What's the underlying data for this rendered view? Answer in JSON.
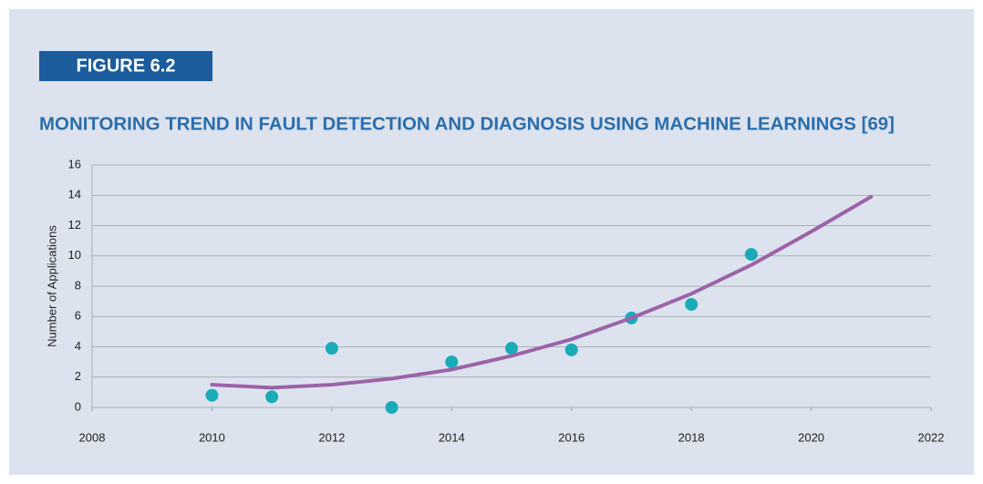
{
  "figure_label": "FIGURE 6.2",
  "chart_data": {
    "type": "scatter",
    "title": "MONITORING TREND IN FAULT DETECTION AND DIAGNOSIS USING MACHINE LEARNINGS [69]",
    "y_label": "Number of Applications",
    "series": [
      {
        "type": "scatter",
        "color": "#1aabb8",
        "x": [
          2010,
          2011,
          2012,
          2013,
          2014,
          2015,
          2016,
          2017,
          2018,
          2019
        ],
        "values": [
          0.8,
          0.7,
          3.9,
          0,
          3.0,
          3.9,
          3.8,
          5.9,
          6.8,
          10.1
        ]
      },
      {
        "type": "line",
        "color": "#9b63a8",
        "x": [
          2010,
          2011,
          2012,
          2013,
          2014,
          2015,
          2016,
          2017,
          2018,
          2019,
          2020,
          2021
        ],
        "values": [
          1.5,
          1.3,
          1.5,
          1.9,
          2.5,
          3.4,
          4.5,
          5.9,
          7.5,
          9.4,
          11.6,
          13.9
        ]
      }
    ],
    "xlim": [
      2008,
      2022
    ],
    "xticks": [
      2008,
      2010,
      2012,
      2014,
      2016,
      2018,
      2020,
      2022
    ],
    "ylim": [
      0,
      16
    ],
    "yticks": [
      0,
      2,
      4,
      6,
      8,
      10,
      12,
      14,
      16
    ],
    "grid": true
  }
}
